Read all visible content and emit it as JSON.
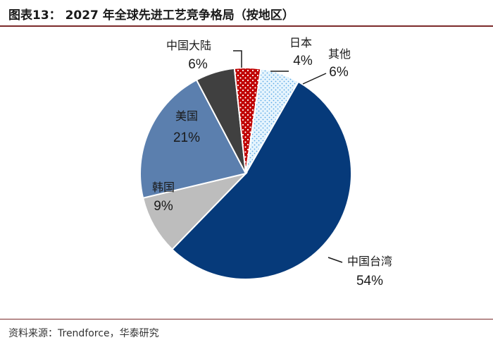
{
  "header": {
    "title": "图表13：  2027 年全球先进工艺竞争格局（按地区）"
  },
  "footer": {
    "source": "资料来源：Trendforce，华泰研究"
  },
  "chart_data": {
    "type": "pie",
    "title": "2027 年全球先进工艺竞争格局（按地区）",
    "start_angle_deg": 0,
    "direction": "clockwise",
    "slices": [
      {
        "key": "tw",
        "label": "中国台湾",
        "value": 54,
        "value_label": "54%",
        "color": "#063a7a",
        "pattern": "none"
      },
      {
        "key": "kr",
        "label": "韩国",
        "value": 9,
        "value_label": "9%",
        "color": "#bdbdbd",
        "pattern": "none"
      },
      {
        "key": "us",
        "label": "美国",
        "value": 21,
        "value_label": "21%",
        "color": "#5b7fae",
        "pattern": "none"
      },
      {
        "key": "cn",
        "label": "中国大陆",
        "value": 6,
        "value_label": "6%",
        "color": "#404040",
        "pattern": "none"
      },
      {
        "key": "jp",
        "label": "日本",
        "value": 4,
        "value_label": "4%",
        "color": "#c00000",
        "pattern": "white-dots"
      },
      {
        "key": "other",
        "label": "其他",
        "value": 6,
        "value_label": "6%",
        "color": "#dbeefa",
        "pattern": "blue-dots"
      }
    ]
  }
}
